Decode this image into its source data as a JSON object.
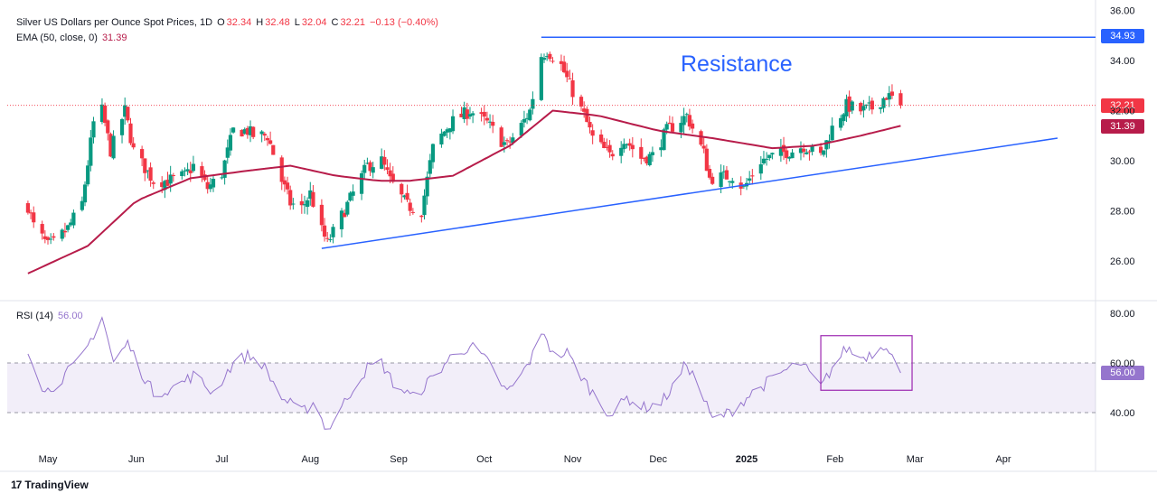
{
  "header": {
    "title": "Silver US Dollars per Ounce Spot Prices, 1D",
    "o_label": "O",
    "o_val": "32.34",
    "h_label": "H",
    "h_val": "32.48",
    "l_label": "L",
    "l_val": "32.04",
    "c_label": "C",
    "c_val": "32.21",
    "change": "−0.13 (−0.40%)",
    "ema_label": "EMA (50, close, 0)",
    "ema_val": "31.39",
    "rsi_label": "RSI (14)",
    "rsi_val": "56.00"
  },
  "annotation": "Resistance",
  "price_tags": {
    "resistance": "34.93",
    "last": "32.21",
    "ema": "31.39",
    "rsi": "56.00"
  },
  "footer": {
    "brand": "TradingView",
    "logo": "17"
  },
  "colors": {
    "up": "#089981",
    "down": "#f23645",
    "ema": "#b71c4a",
    "rsi": "#9575cd",
    "trend": "#2962ff",
    "box": "#9c27b0"
  },
  "chart_data": {
    "type": "candlestick",
    "x_tick_labels": [
      "May",
      "Jun",
      "Jul",
      "Aug",
      "Sep",
      "Oct",
      "Nov",
      "Dec",
      "2025",
      "Feb",
      "Mar",
      "Apr"
    ],
    "price_axis": {
      "ticks": [
        "26.00",
        "28.00",
        "30.00",
        "32.00",
        "34.00",
        "36.00"
      ],
      "ylim": [
        25.1,
        36.0
      ]
    },
    "rsi_axis": {
      "ticks": [
        "40.00",
        "60.00",
        "80.00"
      ],
      "ylim": [
        30,
        82
      ],
      "band": [
        40,
        60
      ]
    },
    "price_anchors": [
      [
        "2024-04-24",
        28.2
      ],
      [
        "2024-04-26",
        27.4
      ],
      [
        "2024-05-01",
        26.6
      ],
      [
        "2024-05-03",
        26.7
      ],
      [
        "2024-05-08",
        27.3
      ],
      [
        "2024-05-13",
        28.3
      ],
      [
        "2024-05-17",
        31.5
      ],
      [
        "2024-05-20",
        32.0
      ],
      [
        "2024-05-23",
        30.4
      ],
      [
        "2024-05-28",
        32.0
      ],
      [
        "2024-05-31",
        30.4
      ],
      [
        "2024-06-07",
        29.2
      ],
      [
        "2024-06-12",
        29.2
      ],
      [
        "2024-06-18",
        29.4
      ],
      [
        "2024-06-21",
        29.8
      ],
      [
        "2024-06-26",
        28.9
      ],
      [
        "2024-07-01",
        29.5
      ],
      [
        "2024-07-05",
        31.2
      ],
      [
        "2024-07-10",
        31.2
      ],
      [
        "2024-07-12",
        31.0
      ],
      [
        "2024-07-17",
        31.0
      ],
      [
        "2024-07-22",
        29.2
      ],
      [
        "2024-07-25",
        28.3
      ],
      [
        "2024-07-29",
        28.1
      ],
      [
        "2024-08-01",
        28.7
      ],
      [
        "2024-08-05",
        27.2
      ],
      [
        "2024-08-07",
        26.7
      ],
      [
        "2024-08-12",
        27.8
      ],
      [
        "2024-08-16",
        28.7
      ],
      [
        "2024-08-21",
        29.8
      ],
      [
        "2024-08-26",
        30.0
      ],
      [
        "2024-08-29",
        29.2
      ],
      [
        "2024-09-04",
        28.2
      ],
      [
        "2024-09-09",
        28.0
      ],
      [
        "2024-09-13",
        30.5
      ],
      [
        "2024-09-19",
        31.5
      ],
      [
        "2024-09-26",
        32.0
      ],
      [
        "2024-10-02",
        31.5
      ],
      [
        "2024-10-07",
        30.8
      ],
      [
        "2024-10-09",
        30.6
      ],
      [
        "2024-10-14",
        31.4
      ],
      [
        "2024-10-17",
        32.0
      ],
      [
        "2024-10-21",
        34.2
      ],
      [
        "2024-10-23",
        34.4
      ],
      [
        "2024-10-28",
        33.8
      ],
      [
        "2024-10-31",
        33.0
      ],
      [
        "2024-11-05",
        31.8
      ],
      [
        "2024-11-08",
        30.9
      ],
      [
        "2024-11-14",
        30.2
      ],
      [
        "2024-11-19",
        30.9
      ],
      [
        "2024-11-25",
        30.1
      ],
      [
        "2024-11-29",
        30.2
      ],
      [
        "2024-12-04",
        31.2
      ],
      [
        "2024-12-11",
        31.8
      ],
      [
        "2024-12-17",
        30.3
      ],
      [
        "2024-12-19",
        29.3
      ],
      [
        "2024-12-27",
        29.4
      ],
      [
        "2024-12-31",
        28.9
      ],
      [
        "2025-01-06",
        30.0
      ],
      [
        "2025-01-13",
        30.3
      ],
      [
        "2025-01-17",
        30.4
      ],
      [
        "2025-01-21",
        30.6
      ],
      [
        "2025-01-27",
        30.2
      ],
      [
        "2025-01-31",
        31.3
      ],
      [
        "2025-02-05",
        32.2
      ],
      [
        "2025-02-10",
        32.0
      ],
      [
        "2025-02-14",
        32.1
      ],
      [
        "2025-02-19",
        32.6
      ],
      [
        "2025-02-21",
        32.5
      ],
      [
        "2025-02-24",
        32.21
      ]
    ],
    "ema_anchors": [
      [
        "2024-04-24",
        25.5
      ],
      [
        "2024-05-15",
        26.6
      ],
      [
        "2024-06-01",
        28.4
      ],
      [
        "2024-06-20",
        29.3
      ],
      [
        "2024-07-10",
        29.6
      ],
      [
        "2024-07-25",
        29.8
      ],
      [
        "2024-08-10",
        29.4
      ],
      [
        "2024-08-25",
        29.2
      ],
      [
        "2024-09-05",
        29.2
      ],
      [
        "2024-09-20",
        29.4
      ],
      [
        "2024-10-10",
        30.6
      ],
      [
        "2024-10-25",
        32.0
      ],
      [
        "2024-11-10",
        31.8
      ],
      [
        "2024-12-01",
        31.2
      ],
      [
        "2024-12-20",
        30.9
      ],
      [
        "2025-01-10",
        30.5
      ],
      [
        "2025-01-25",
        30.6
      ],
      [
        "2025-02-10",
        31.0
      ],
      [
        "2025-02-24",
        31.39
      ]
    ],
    "trend_support": [
      [
        "2024-08-05",
        26.5
      ],
      [
        "2025-04-20",
        30.9
      ]
    ],
    "trend_resistance": [
      [
        "2024-10-21",
        34.93
      ],
      [
        "2025-04-30",
        34.93
      ]
    ],
    "rsi_anchors": [
      [
        "2024-04-24",
        66
      ],
      [
        "2024-04-30",
        48
      ],
      [
        "2024-05-06",
        54
      ],
      [
        "2024-05-13",
        62
      ],
      [
        "2024-05-20",
        79
      ],
      [
        "2024-05-24",
        60
      ],
      [
        "2024-05-29",
        68
      ],
      [
        "2024-06-03",
        56
      ],
      [
        "2024-06-07",
        48
      ],
      [
        "2024-06-14",
        50
      ],
      [
        "2024-06-21",
        55
      ],
      [
        "2024-06-28",
        48
      ],
      [
        "2024-07-05",
        60
      ],
      [
        "2024-07-10",
        63
      ],
      [
        "2024-07-15",
        60
      ],
      [
        "2024-07-22",
        46
      ],
      [
        "2024-07-29",
        40
      ],
      [
        "2024-08-02",
        44
      ],
      [
        "2024-08-07",
        33
      ],
      [
        "2024-08-12",
        42
      ],
      [
        "2024-08-16",
        50
      ],
      [
        "2024-08-21",
        58
      ],
      [
        "2024-08-26",
        60
      ],
      [
        "2024-08-30",
        52
      ],
      [
        "2024-09-06",
        46
      ],
      [
        "2024-09-12",
        53
      ],
      [
        "2024-09-19",
        62
      ],
      [
        "2024-09-26",
        67
      ],
      [
        "2024-10-01",
        62
      ],
      [
        "2024-10-04",
        57
      ],
      [
        "2024-10-09",
        48
      ],
      [
        "2024-10-14",
        55
      ],
      [
        "2024-10-18",
        63
      ],
      [
        "2024-10-22",
        73
      ],
      [
        "2024-10-25",
        63
      ],
      [
        "2024-10-30",
        64
      ],
      [
        "2024-11-05",
        53
      ],
      [
        "2024-11-11",
        43
      ],
      [
        "2024-11-15",
        39
      ],
      [
        "2024-11-20",
        46
      ],
      [
        "2024-11-26",
        42
      ],
      [
        "2024-12-02",
        44
      ],
      [
        "2024-12-06",
        50
      ],
      [
        "2024-12-11",
        60
      ],
      [
        "2024-12-16",
        48
      ],
      [
        "2024-12-20",
        37
      ],
      [
        "2024-12-26",
        40
      ],
      [
        "2025-01-03",
        48
      ],
      [
        "2025-01-08",
        52
      ],
      [
        "2025-01-13",
        56
      ],
      [
        "2025-01-20",
        60
      ],
      [
        "2025-01-27",
        50
      ],
      [
        "2025-01-31",
        58
      ],
      [
        "2025-02-05",
        66
      ],
      [
        "2025-02-10",
        62
      ],
      [
        "2025-02-14",
        64
      ],
      [
        "2025-02-19",
        68
      ],
      [
        "2025-02-21",
        63
      ],
      [
        "2025-02-24",
        56
      ]
    ],
    "rsi_highlight_box": {
      "x": [
        "2025-01-27",
        "2025-02-28"
      ],
      "y": [
        49,
        71
      ]
    }
  }
}
